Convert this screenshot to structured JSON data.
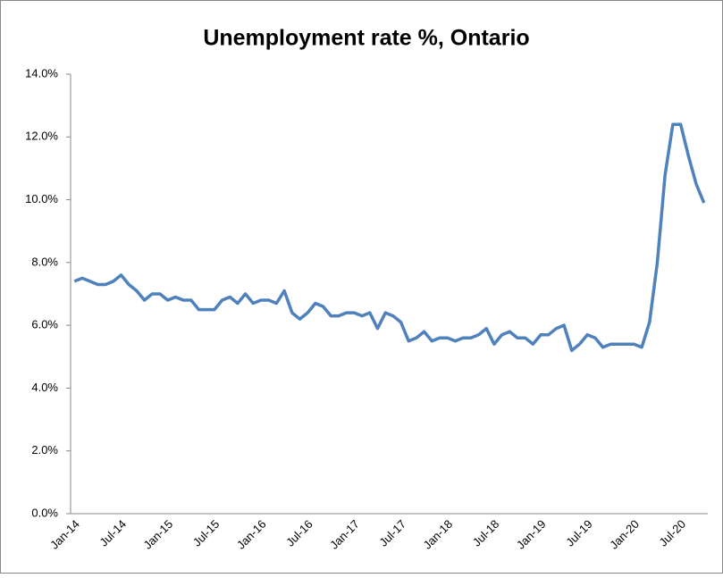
{
  "chart_data": {
    "type": "line",
    "title": "Unemployment rate %, Ontario",
    "categories": [
      "Jan-14",
      null,
      null,
      null,
      null,
      null,
      "Jul-14",
      null,
      null,
      null,
      null,
      null,
      "Jan-15",
      null,
      null,
      null,
      null,
      null,
      "Jul-15",
      null,
      null,
      null,
      null,
      null,
      "Jan-16",
      null,
      null,
      null,
      null,
      null,
      "Jul-16",
      null,
      null,
      null,
      null,
      null,
      "Jan-17",
      null,
      null,
      null,
      null,
      null,
      "Jul-17",
      null,
      null,
      null,
      null,
      null,
      "Jan-18",
      null,
      null,
      null,
      null,
      null,
      "Jul-18",
      null,
      null,
      null,
      null,
      null,
      "Jan-19",
      null,
      null,
      null,
      null,
      null,
      "Jul-19",
      null,
      null,
      null,
      null,
      null,
      "Jan-20",
      null,
      null,
      null,
      null,
      null,
      "Jul-20",
      null,
      null,
      null
    ],
    "values": [
      7.4,
      7.5,
      7.4,
      7.3,
      7.3,
      7.4,
      7.6,
      7.3,
      7.1,
      6.8,
      7.0,
      7.0,
      6.8,
      6.9,
      6.8,
      6.8,
      6.5,
      6.5,
      6.5,
      6.8,
      6.9,
      6.7,
      7.0,
      6.7,
      6.8,
      6.8,
      6.7,
      7.1,
      6.4,
      6.2,
      6.4,
      6.7,
      6.6,
      6.3,
      6.3,
      6.4,
      6.4,
      6.3,
      6.4,
      5.9,
      6.4,
      6.3,
      6.1,
      5.5,
      5.6,
      5.8,
      5.5,
      5.6,
      5.6,
      5.5,
      5.6,
      5.6,
      5.7,
      5.9,
      5.4,
      5.7,
      5.8,
      5.6,
      5.6,
      5.4,
      5.7,
      5.7,
      5.9,
      6.0,
      5.2,
      5.4,
      5.7,
      5.6,
      5.3,
      5.4,
      5.4,
      5.4,
      5.4,
      5.3,
      6.1,
      8.0,
      10.8,
      12.4,
      12.4,
      11.4,
      10.5,
      9.9
    ],
    "color": "#4f81bd",
    "ylim": [
      0,
      14
    ],
    "yticks": [
      {
        "value": 0,
        "label": "0.0%"
      },
      {
        "value": 2,
        "label": "2.0%"
      },
      {
        "value": 4,
        "label": "4.0%"
      },
      {
        "value": 6,
        "label": "6.0%"
      },
      {
        "value": 8,
        "label": "8.0%"
      },
      {
        "value": 10,
        "label": "10.0%"
      },
      {
        "value": 12,
        "label": "12.0%"
      },
      {
        "value": 14,
        "label": "14.0%"
      }
    ],
    "grid": false
  }
}
